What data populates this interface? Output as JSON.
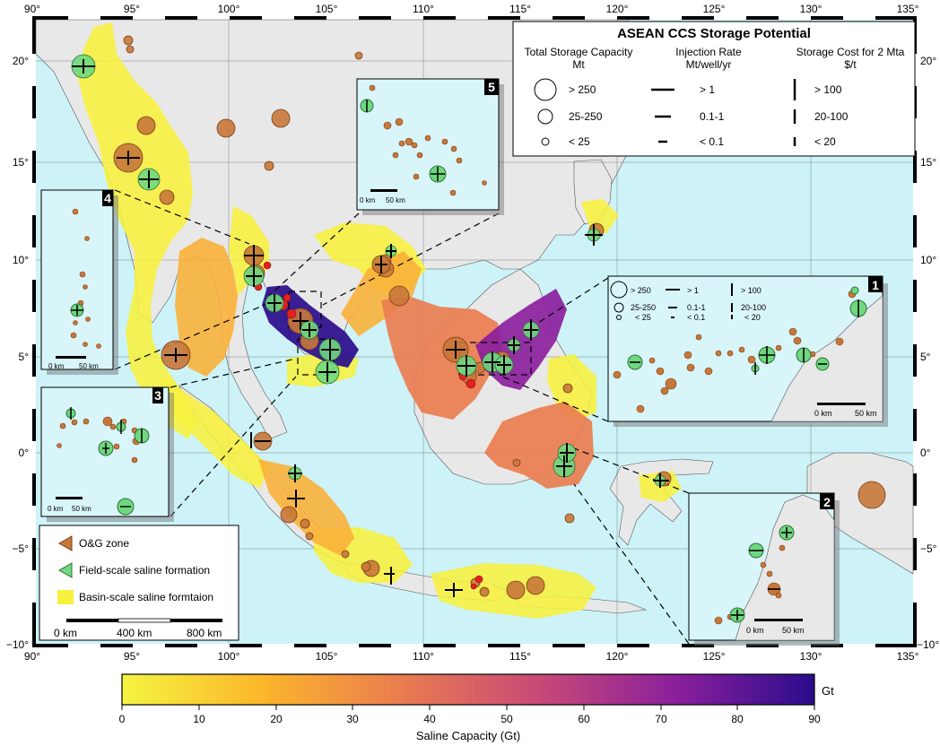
{
  "axes": {
    "lon_ticks": [
      "90°",
      "95°",
      "100°",
      "105°",
      "110°",
      "115°",
      "120°",
      "125°",
      "130°",
      "135°"
    ],
    "lat_ticks": [
      "20°",
      "15°",
      "10°",
      "5°",
      "0°",
      "−5°",
      "−10°"
    ]
  },
  "legend_box": {
    "title": "ASEAN CCS Storage Potential",
    "col1_title": "Total Storage Capacity",
    "col1_unit": "Mt",
    "col2_title": "Injection Rate",
    "col2_unit": "Mt/well/yr",
    "col3_title": "Storage Cost for 2 Mta",
    "col3_unit": "$/t",
    "cap_rows": [
      "> 250",
      "25-250",
      "< 25"
    ],
    "rate_rows": [
      "> 1",
      "0.1-1",
      "< 0.1"
    ],
    "cost_rows": [
      "> 100",
      "20-100",
      "< 20"
    ]
  },
  "inset1_legend": {
    "cap_rows": [
      "> 250",
      "25-250",
      "< 25"
    ],
    "rate_rows": [
      "> 1",
      "0.1-1",
      "< 0.1"
    ],
    "cost_rows": [
      "> 100",
      "20-100",
      "< 20"
    ]
  },
  "insets": [
    {
      "id": "1",
      "scale": [
        "0 km",
        "50 km"
      ]
    },
    {
      "id": "2",
      "scale": [
        "0 km",
        "50 km"
      ]
    },
    {
      "id": "3",
      "scale": [
        "0 km",
        "50 km"
      ]
    },
    {
      "id": "4",
      "scale": [
        "0 km",
        "50 km"
      ]
    },
    {
      "id": "5",
      "scale": [
        "0 km",
        "50 km"
      ]
    }
  ],
  "symbol_legend": {
    "og": "O&G zone",
    "field": "Field-scale saline formation",
    "basin": "Basin-scale saline formtaion",
    "scale_labels": [
      "0 km",
      "400 km",
      "800 km"
    ]
  },
  "colorbar": {
    "ticks": [
      "0",
      "10",
      "20",
      "30",
      "40",
      "50",
      "60",
      "70",
      "80",
      "90"
    ],
    "unit": "Gt",
    "label": "Saline Capacity (Gt)"
  },
  "colors": {
    "ocean": "#cdf3f8",
    "land": "#e8e8e8",
    "og": "#c8773a",
    "field": "#6fd87f",
    "basin": "#ffff33"
  }
}
